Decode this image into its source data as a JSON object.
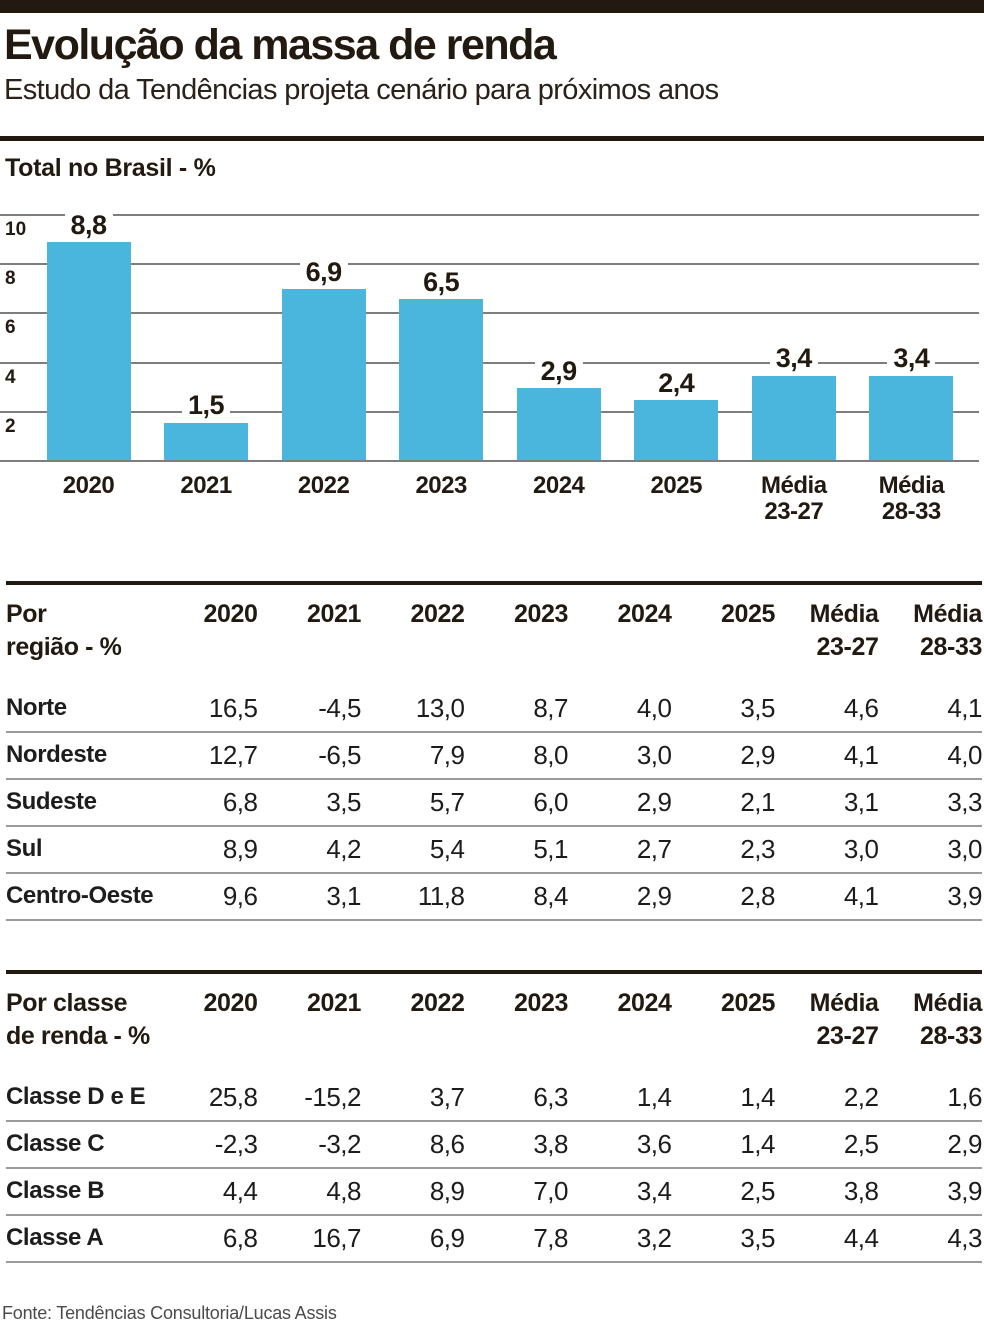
{
  "colors": {
    "accent_blue": "#4AB6DD",
    "ink": "#221910",
    "gridline": "#7e7e7e",
    "row_separator": "#9b9b9b"
  },
  "header": {
    "title": "Evolução da massa de renda",
    "subtitle": "Estudo da Tendências projeta cenário para próximos anos"
  },
  "chart_data": {
    "type": "bar",
    "title": "Total no Brasil - %",
    "categories": [
      "2020",
      "2021",
      "2022",
      "2023",
      "2024",
      "2025",
      "Média\n23-27",
      "Média\n28-33"
    ],
    "values": [
      8.8,
      1.5,
      6.9,
      6.5,
      2.9,
      2.4,
      3.4,
      3.4
    ],
    "value_labels": [
      "8,8",
      "1,5",
      "6,9",
      "6,5",
      "2,9",
      "2,4",
      "3,4",
      "3,4"
    ],
    "xlabel": "",
    "ylabel": "",
    "ylim": [
      0,
      10
    ],
    "yticks": [
      10,
      8,
      6,
      4,
      2
    ],
    "grid": true,
    "legend": "none",
    "bar_color": "#4AB6DD"
  },
  "region_table": {
    "title": "Por\nregião - %",
    "columns": [
      "2020",
      "2021",
      "2022",
      "2023",
      "2024",
      "2025",
      "Média\n23-27",
      "Média\n28-33"
    ],
    "rows": [
      {
        "label": "Norte",
        "values": [
          "16,5",
          "-4,5",
          "13,0",
          "8,7",
          "4,0",
          "3,5",
          "4,6",
          "4,1"
        ]
      },
      {
        "label": "Nordeste",
        "values": [
          "12,7",
          "-6,5",
          "7,9",
          "8,0",
          "3,0",
          "2,9",
          "4,1",
          "4,0"
        ]
      },
      {
        "label": "Sudeste",
        "values": [
          "6,8",
          "3,5",
          "5,7",
          "6,0",
          "2,9",
          "2,1",
          "3,1",
          "3,3"
        ]
      },
      {
        "label": "Sul",
        "values": [
          "8,9",
          "4,2",
          "5,4",
          "5,1",
          "2,7",
          "2,3",
          "3,0",
          "3,0"
        ]
      },
      {
        "label": "Centro-Oeste",
        "values": [
          "9,6",
          "3,1",
          "11,8",
          "8,4",
          "2,9",
          "2,8",
          "4,1",
          "3,9"
        ]
      }
    ]
  },
  "class_table": {
    "title": "Por classe\nde renda - %",
    "columns": [
      "2020",
      "2021",
      "2022",
      "2023",
      "2024",
      "2025",
      "Média\n23-27",
      "Média\n28-33"
    ],
    "rows": [
      {
        "label": "Classe D e E",
        "values": [
          "25,8",
          "-15,2",
          "3,7",
          "6,3",
          "1,4",
          "1,4",
          "2,2",
          "1,6"
        ]
      },
      {
        "label": "Classe C",
        "values": [
          "-2,3",
          "-3,2",
          "8,6",
          "3,8",
          "3,6",
          "1,4",
          "2,5",
          "2,9"
        ]
      },
      {
        "label": "Classe B",
        "values": [
          "4,4",
          "4,8",
          "8,9",
          "7,0",
          "3,4",
          "2,5",
          "3,8",
          "3,9"
        ]
      },
      {
        "label": "Classe A",
        "values": [
          "6,8",
          "16,7",
          "6,9",
          "7,8",
          "3,2",
          "3,5",
          "4,4",
          "4,3"
        ]
      }
    ]
  },
  "footer": {
    "source": "Fonte: Tendências Consultoria/Lucas Assis"
  }
}
